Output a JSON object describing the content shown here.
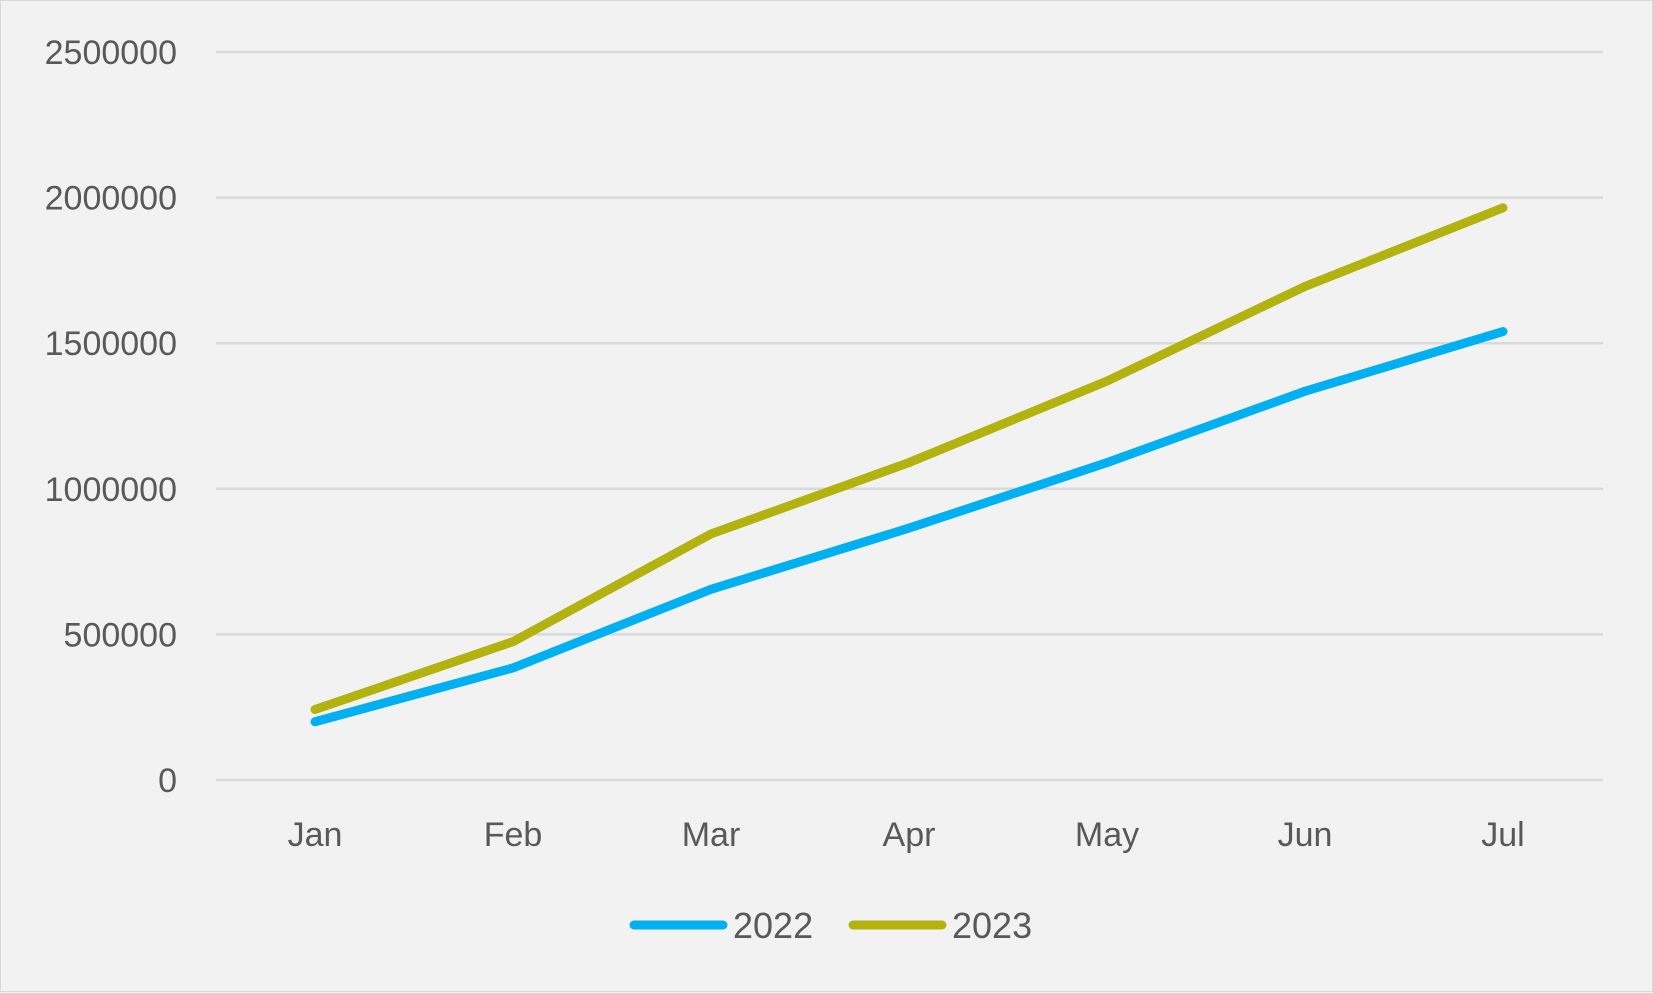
{
  "chart_data": {
    "type": "line",
    "title": "",
    "xlabel": "",
    "ylabel": "",
    "categories": [
      "Jan",
      "Feb",
      "Mar",
      "Apr",
      "May",
      "Jun",
      "Jul"
    ],
    "ylim": [
      0,
      2500000
    ],
    "yticks": [
      "0",
      "500000",
      "1000000",
      "1500000",
      "2000000",
      "2500000"
    ],
    "grid": true,
    "legend": "bottom",
    "series": [
      {
        "name": "2022",
        "color": "#00b0f0",
        "values": [
          200000,
          385000,
          655000,
          865000,
          1090000,
          1335000,
          1540000
        ]
      },
      {
        "name": "2023",
        "color": "#b3b30f",
        "values": [
          242000,
          475000,
          845000,
          1090000,
          1370000,
          1695000,
          1965000
        ]
      }
    ]
  }
}
